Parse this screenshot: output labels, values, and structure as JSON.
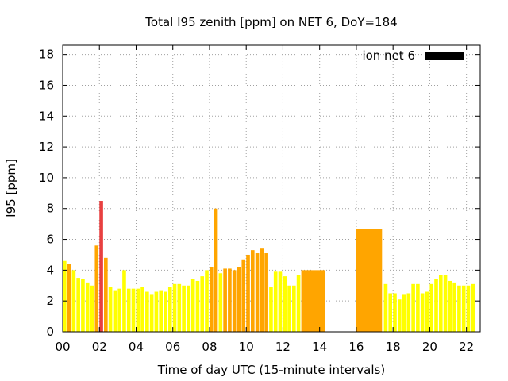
{
  "chart_data": {
    "type": "bar",
    "title": "Total I95 zenith [ppm] on NET 6, DoY=184",
    "xlabel": "Time of day UTC (15-minute intervals)",
    "ylabel": "I95 [ppm]",
    "xlim": [
      0,
      22.75
    ],
    "ylim": [
      0,
      18.6
    ],
    "x_ticks": [
      0,
      2,
      4,
      6,
      8,
      10,
      12,
      14,
      16,
      18,
      20,
      22
    ],
    "x_tick_labels": [
      "00",
      "02",
      "04",
      "06",
      "08",
      "10",
      "12",
      "14",
      "16",
      "18",
      "20",
      "22"
    ],
    "y_ticks": [
      0,
      2,
      4,
      6,
      8,
      10,
      12,
      14,
      16,
      18
    ],
    "y_tick_labels": [
      "0",
      "2",
      "4",
      "6",
      "8",
      "10",
      "12",
      "14",
      "16",
      "18"
    ],
    "grid": true,
    "legend": {
      "label": "ion net 6",
      "color": "#000000",
      "placement": "top-right"
    },
    "colors": {
      "low": "#ffff00",
      "mid": "#ffa500",
      "high": "#e84040"
    },
    "bars": [
      {
        "x": 0.0,
        "w": 0.2,
        "v": 4.6,
        "c": "#ffff00"
      },
      {
        "x": 0.25,
        "w": 0.2,
        "v": 4.4,
        "c": "#ffa500"
      },
      {
        "x": 0.5,
        "w": 0.2,
        "v": 4.0,
        "c": "#ffff00"
      },
      {
        "x": 0.75,
        "w": 0.2,
        "v": 3.5,
        "c": "#ffff00"
      },
      {
        "x": 1.0,
        "w": 0.2,
        "v": 3.4,
        "c": "#ffff00"
      },
      {
        "x": 1.25,
        "w": 0.2,
        "v": 3.2,
        "c": "#ffff00"
      },
      {
        "x": 1.5,
        "w": 0.2,
        "v": 3.0,
        "c": "#ffff00"
      },
      {
        "x": 1.75,
        "w": 0.2,
        "v": 5.6,
        "c": "#ffa500"
      },
      {
        "x": 2.0,
        "w": 0.2,
        "v": 8.5,
        "c": "#e84040"
      },
      {
        "x": 2.25,
        "w": 0.2,
        "v": 4.8,
        "c": "#ffa500"
      },
      {
        "x": 2.5,
        "w": 0.2,
        "v": 2.9,
        "c": "#ffff00"
      },
      {
        "x": 2.75,
        "w": 0.2,
        "v": 2.7,
        "c": "#ffff00"
      },
      {
        "x": 3.0,
        "w": 0.2,
        "v": 2.8,
        "c": "#ffff00"
      },
      {
        "x": 3.25,
        "w": 0.2,
        "v": 4.0,
        "c": "#ffff00"
      },
      {
        "x": 3.5,
        "w": 0.2,
        "v": 2.8,
        "c": "#ffff00"
      },
      {
        "x": 3.75,
        "w": 0.2,
        "v": 2.8,
        "c": "#ffff00"
      },
      {
        "x": 4.0,
        "w": 0.2,
        "v": 2.8,
        "c": "#ffff00"
      },
      {
        "x": 4.25,
        "w": 0.2,
        "v": 2.9,
        "c": "#ffff00"
      },
      {
        "x": 4.5,
        "w": 0.2,
        "v": 2.6,
        "c": "#ffff00"
      },
      {
        "x": 4.75,
        "w": 0.2,
        "v": 2.4,
        "c": "#ffff00"
      },
      {
        "x": 5.0,
        "w": 0.2,
        "v": 2.6,
        "c": "#ffff00"
      },
      {
        "x": 5.25,
        "w": 0.2,
        "v": 2.7,
        "c": "#ffff00"
      },
      {
        "x": 5.5,
        "w": 0.2,
        "v": 2.6,
        "c": "#ffff00"
      },
      {
        "x": 5.75,
        "w": 0.2,
        "v": 2.9,
        "c": "#ffff00"
      },
      {
        "x": 6.0,
        "w": 0.2,
        "v": 3.1,
        "c": "#ffff00"
      },
      {
        "x": 6.25,
        "w": 0.2,
        "v": 3.1,
        "c": "#ffff00"
      },
      {
        "x": 6.5,
        "w": 0.2,
        "v": 3.0,
        "c": "#ffff00"
      },
      {
        "x": 6.75,
        "w": 0.2,
        "v": 3.0,
        "c": "#ffff00"
      },
      {
        "x": 7.0,
        "w": 0.2,
        "v": 3.4,
        "c": "#ffff00"
      },
      {
        "x": 7.25,
        "w": 0.2,
        "v": 3.3,
        "c": "#ffff00"
      },
      {
        "x": 7.5,
        "w": 0.2,
        "v": 3.6,
        "c": "#ffff00"
      },
      {
        "x": 7.75,
        "w": 0.2,
        "v": 4.0,
        "c": "#ffff00"
      },
      {
        "x": 8.0,
        "w": 0.2,
        "v": 4.2,
        "c": "#ffa500"
      },
      {
        "x": 8.25,
        "w": 0.2,
        "v": 8.0,
        "c": "#ffa500"
      },
      {
        "x": 8.5,
        "w": 0.2,
        "v": 3.8,
        "c": "#ffff00"
      },
      {
        "x": 8.75,
        "w": 0.2,
        "v": 4.1,
        "c": "#ffa500"
      },
      {
        "x": 9.0,
        "w": 0.2,
        "v": 4.1,
        "c": "#ffa500"
      },
      {
        "x": 9.25,
        "w": 0.2,
        "v": 4.0,
        "c": "#ffa500"
      },
      {
        "x": 9.5,
        "w": 0.2,
        "v": 4.2,
        "c": "#ffa500"
      },
      {
        "x": 9.75,
        "w": 0.2,
        "v": 4.7,
        "c": "#ffa500"
      },
      {
        "x": 10.0,
        "w": 0.2,
        "v": 5.0,
        "c": "#ffa500"
      },
      {
        "x": 10.25,
        "w": 0.2,
        "v": 5.3,
        "c": "#ffa500"
      },
      {
        "x": 10.5,
        "w": 0.2,
        "v": 5.1,
        "c": "#ffa500"
      },
      {
        "x": 10.75,
        "w": 0.2,
        "v": 5.4,
        "c": "#ffa500"
      },
      {
        "x": 11.0,
        "w": 0.2,
        "v": 5.1,
        "c": "#ffa500"
      },
      {
        "x": 11.25,
        "w": 0.2,
        "v": 2.9,
        "c": "#ffff00"
      },
      {
        "x": 11.5,
        "w": 0.2,
        "v": 3.9,
        "c": "#ffff00"
      },
      {
        "x": 11.75,
        "w": 0.2,
        "v": 3.9,
        "c": "#ffff00"
      },
      {
        "x": 12.0,
        "w": 0.2,
        "v": 3.6,
        "c": "#ffff00"
      },
      {
        "x": 12.25,
        "w": 0.2,
        "v": 3.0,
        "c": "#ffff00"
      },
      {
        "x": 12.5,
        "w": 0.2,
        "v": 3.0,
        "c": "#ffff00"
      },
      {
        "x": 12.75,
        "w": 0.2,
        "v": 3.7,
        "c": "#ffff00"
      },
      {
        "x": 13.0,
        "w": 1.3,
        "v": 4.0,
        "c": "#ffa500"
      },
      {
        "x": 16.0,
        "w": 1.4,
        "v": 6.65,
        "c": "#ffa500"
      },
      {
        "x": 17.5,
        "w": 0.2,
        "v": 3.1,
        "c": "#ffff00"
      },
      {
        "x": 17.75,
        "w": 0.2,
        "v": 2.5,
        "c": "#ffff00"
      },
      {
        "x": 18.0,
        "w": 0.2,
        "v": 2.5,
        "c": "#ffff00"
      },
      {
        "x": 18.25,
        "w": 0.2,
        "v": 2.1,
        "c": "#ffff00"
      },
      {
        "x": 18.5,
        "w": 0.2,
        "v": 2.4,
        "c": "#ffff00"
      },
      {
        "x": 18.75,
        "w": 0.2,
        "v": 2.5,
        "c": "#ffff00"
      },
      {
        "x": 19.0,
        "w": 0.2,
        "v": 3.1,
        "c": "#ffff00"
      },
      {
        "x": 19.25,
        "w": 0.2,
        "v": 3.1,
        "c": "#ffff00"
      },
      {
        "x": 19.5,
        "w": 0.2,
        "v": 2.5,
        "c": "#ffff00"
      },
      {
        "x": 19.75,
        "w": 0.2,
        "v": 2.6,
        "c": "#ffff00"
      },
      {
        "x": 20.0,
        "w": 0.2,
        "v": 3.1,
        "c": "#ffff00"
      },
      {
        "x": 20.25,
        "w": 0.2,
        "v": 3.4,
        "c": "#ffff00"
      },
      {
        "x": 20.5,
        "w": 0.2,
        "v": 3.7,
        "c": "#ffff00"
      },
      {
        "x": 20.75,
        "w": 0.2,
        "v": 3.7,
        "c": "#ffff00"
      },
      {
        "x": 21.0,
        "w": 0.2,
        "v": 3.3,
        "c": "#ffff00"
      },
      {
        "x": 21.25,
        "w": 0.2,
        "v": 3.2,
        "c": "#ffff00"
      },
      {
        "x": 21.5,
        "w": 0.2,
        "v": 3.0,
        "c": "#ffff00"
      },
      {
        "x": 21.75,
        "w": 0.2,
        "v": 3.0,
        "c": "#ffff00"
      },
      {
        "x": 22.0,
        "w": 0.2,
        "v": 3.0,
        "c": "#ffff00"
      },
      {
        "x": 22.25,
        "w": 0.2,
        "v": 3.1,
        "c": "#ffff00"
      }
    ]
  }
}
